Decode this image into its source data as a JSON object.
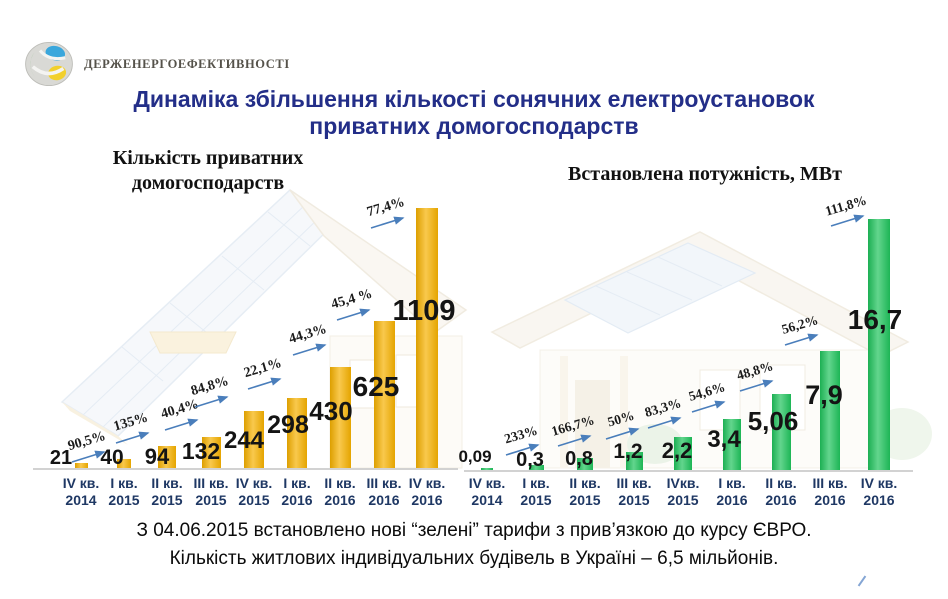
{
  "logo": {
    "text": "ДЕРЖЕНЕРГОЕФЕКТИВНОСТІ",
    "icon": "energy-efficiency-sphere-logo"
  },
  "title": {
    "line1": "Динаміка збільшення кількості сонячних електроустановок",
    "line2": "приватних домогосподарств"
  },
  "theme": {
    "title_color": "#232E88",
    "axis_label_color": "#1F3864",
    "arrow_color": "#4A7EBB",
    "axis_line_color": "#D2D2D2",
    "households_bar_color": "#F6B100",
    "capacity_bar_color": "#1FC35C"
  },
  "chart_data": [
    {
      "type": "bar",
      "title": "Кількість приватних домогосподарств",
      "title_lines": [
        "Кількість приватних",
        "домогосподарств"
      ],
      "categories": [
        {
          "quarter": "IV кв.",
          "year": "2014"
        },
        {
          "quarter": "I кв.",
          "year": "2015"
        },
        {
          "quarter": "II кв.",
          "year": "2015"
        },
        {
          "quarter": "III кв.",
          "year": "2015"
        },
        {
          "quarter": "IV кв.",
          "year": "2015"
        },
        {
          "quarter": "I кв.",
          "year": "2016"
        },
        {
          "quarter": "II кв.",
          "year": "2016"
        },
        {
          "quarter": "III кв.",
          "year": "2016"
        },
        {
          "quarter": "IV кв.",
          "year": "2016"
        }
      ],
      "values": [
        21,
        40,
        94,
        132,
        244,
        298,
        430,
        625,
        1109
      ],
      "value_labels": [
        "21",
        "40",
        "94",
        "132",
        "244",
        "298",
        "430",
        "625",
        "1109"
      ],
      "growth_labels": [
        "90,5%",
        "135%",
        "40,4%",
        "84,8%",
        "22,1%",
        "44,3%",
        "45,4 %",
        "77,4%"
      ],
      "bar_color": "#F6B100",
      "ylim": [
        0,
        1200
      ],
      "legend": "none",
      "grid": "off"
    },
    {
      "type": "bar",
      "title": "Встановлена потужність, МВт",
      "title_lines": [
        "Встановлена потужність, МВт"
      ],
      "categories": [
        {
          "quarter": "IV кв.",
          "year": "2014"
        },
        {
          "quarter": "I кв.",
          "year": "2015"
        },
        {
          "quarter": "II кв.",
          "year": "2015"
        },
        {
          "quarter": "III кв.",
          "year": "2015"
        },
        {
          "quarter": "IVкв.",
          "year": "2015"
        },
        {
          "quarter": "I кв.",
          "year": "2016"
        },
        {
          "quarter": "II кв.",
          "year": "2016"
        },
        {
          "quarter": "III кв.",
          "year": "2016"
        },
        {
          "quarter": "IV кв.",
          "year": "2016"
        }
      ],
      "values": [
        0.09,
        0.3,
        0.8,
        1.2,
        2.2,
        3.4,
        5.06,
        7.9,
        16.7
      ],
      "value_labels": [
        "0,09",
        "0,3",
        "0,8",
        "1,2",
        "2,2",
        "3,4",
        "5,06",
        "7,9",
        "16,7"
      ],
      "growth_labels": [
        "233%",
        "166,7%",
        "50%",
        "83,3%",
        "54,6%",
        "48,8%",
        "56,2%",
        "111,8%"
      ],
      "bar_color": "#1FC35C",
      "ylim": [
        0,
        18
      ],
      "legend": "none",
      "grid": "off"
    }
  ],
  "footer": {
    "line1": "З 04.06.2015 встановлено нові “зелені” тарифи з прив’язкою до курсу ЄВРО.",
    "line2": "Кількість житлових індивідуальних будівель в Україні – 6,5 мільйонів."
  }
}
